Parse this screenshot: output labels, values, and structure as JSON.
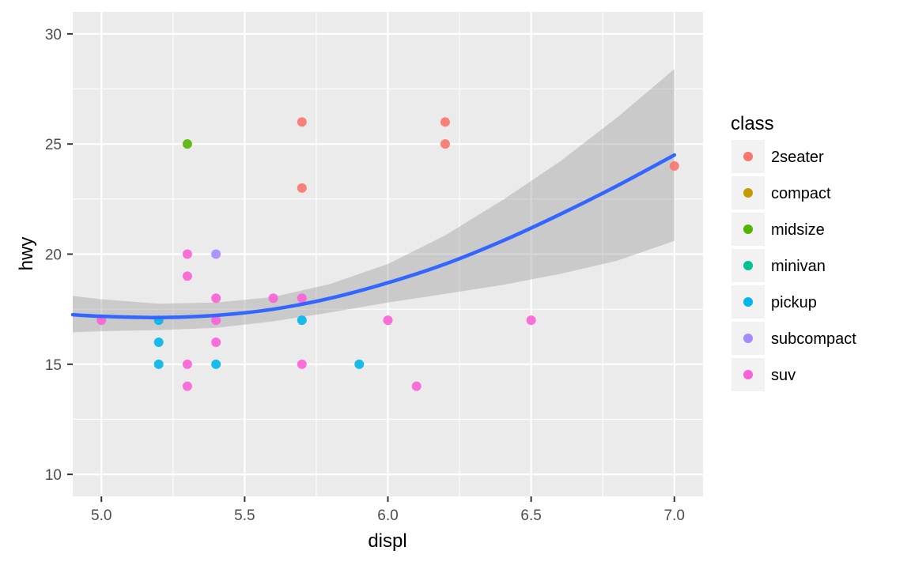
{
  "chart_data": {
    "type": "scatter",
    "xlabel": "displ",
    "ylabel": "hwy",
    "xlim": [
      4.9,
      7.1
    ],
    "ylim": [
      9,
      31
    ],
    "x_ticks": [
      5.0,
      5.5,
      6.0,
      6.5,
      7.0
    ],
    "x_tick_labels": [
      "5.0",
      "5.5",
      "6.0",
      "6.5",
      "7.0"
    ],
    "y_ticks": [
      10,
      15,
      20,
      25,
      30
    ],
    "y_tick_labels": [
      "10",
      "15",
      "20",
      "25",
      "30"
    ],
    "grid": true,
    "legend_title": "class",
    "legend_position": "right",
    "legend_entries": [
      "2seater",
      "compact",
      "midsize",
      "minivan",
      "pickup",
      "subcompact",
      "suv"
    ],
    "series": [
      {
        "name": "2seater",
        "color": "#F8766D",
        "points": [
          [
            5.7,
            26
          ],
          [
            5.7,
            23
          ],
          [
            6.2,
            26
          ],
          [
            6.2,
            25
          ],
          [
            7.0,
            24
          ]
        ]
      },
      {
        "name": "compact",
        "color": "#C49A00",
        "points": []
      },
      {
        "name": "midsize",
        "color": "#53B400",
        "points": [
          [
            5.3,
            25
          ]
        ]
      },
      {
        "name": "minivan",
        "color": "#00C094",
        "points": []
      },
      {
        "name": "pickup",
        "color": "#00B6EB",
        "points": [
          [
            5.2,
            17
          ],
          [
            5.2,
            16
          ],
          [
            5.2,
            15
          ],
          [
            5.4,
            15
          ],
          [
            5.7,
            17
          ],
          [
            5.9,
            15
          ]
        ]
      },
      {
        "name": "subcompact",
        "color": "#A58AFF",
        "points": [
          [
            5.4,
            20
          ]
        ]
      },
      {
        "name": "suv",
        "color": "#FB61D7",
        "points": [
          [
            5.0,
            17
          ],
          [
            5.3,
            20
          ],
          [
            5.3,
            19
          ],
          [
            5.3,
            15
          ],
          [
            5.3,
            14
          ],
          [
            5.4,
            18
          ],
          [
            5.4,
            17
          ],
          [
            5.4,
            16
          ],
          [
            5.6,
            18
          ],
          [
            5.7,
            18
          ],
          [
            5.7,
            15
          ],
          [
            6.0,
            17
          ],
          [
            6.1,
            14
          ],
          [
            6.5,
            17
          ]
        ]
      }
    ],
    "smooth": {
      "method": "loess",
      "color": "#3366FF",
      "x": [
        4.9,
        5.0,
        5.2,
        5.4,
        5.6,
        5.8,
        6.0,
        6.2,
        6.4,
        6.6,
        6.8,
        7.0
      ],
      "y": [
        17.25,
        17.18,
        17.12,
        17.22,
        17.5,
        18.0,
        18.7,
        19.55,
        20.6,
        21.8,
        23.1,
        24.5
      ],
      "ymin": [
        16.45,
        16.5,
        16.55,
        16.65,
        16.95,
        17.35,
        17.8,
        18.2,
        18.6,
        19.1,
        19.7,
        20.6
      ],
      "ymax": [
        18.1,
        17.95,
        17.75,
        17.8,
        18.05,
        18.65,
        19.55,
        20.85,
        22.45,
        24.2,
        26.2,
        28.4
      ]
    }
  }
}
